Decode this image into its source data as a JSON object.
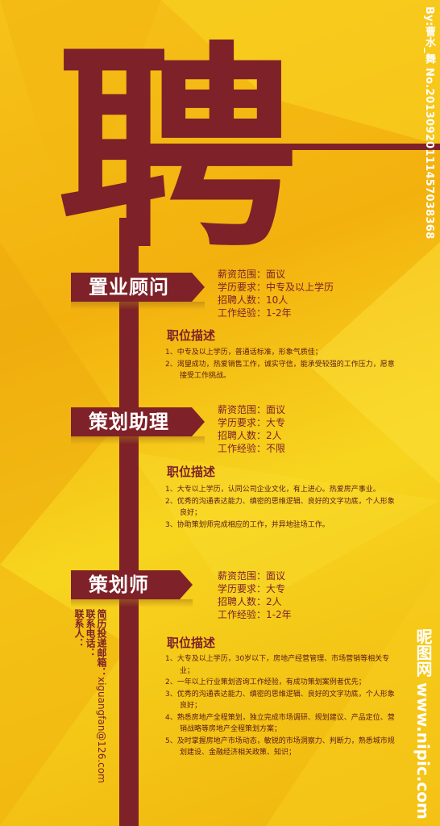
{
  "headline": "聘",
  "jobs": [
    {
      "title": "置业顾问",
      "info": [
        "薪资范围：面议",
        "学历要求：中专及以上学历",
        "招聘人数：10人",
        "工作经验：1-2年"
      ],
      "desc_title": "职位描述",
      "desc": [
        "1、中专及以上学历，普通话标准，形象气质佳；",
        "2、渴望成功，热爱销售工作，诚实守信，能承受较强的工作压力，愿意接受工作挑战。"
      ]
    },
    {
      "title": "策划助理",
      "info": [
        "薪资范围：面议",
        "学历要求：大专",
        "招聘人数：2人",
        "工作经验：不限"
      ],
      "desc_title": "职位描述",
      "desc": [
        "1、大专以上学历，认同公司企业文化，有上进心。热爱房产事业。",
        "2、优秀的沟通表达能力、缜密的思维逻辑、良好的文字功底，个人形象良好；",
        "3、协助策划师完成相应的工作，并异地驻场工作。"
      ]
    },
    {
      "title": "策划师",
      "info": [
        "薪资范围：面议",
        "学历要求：大专",
        "招聘人数：2人",
        "工作经验：1-2年"
      ],
      "desc_title": "职位描述",
      "desc": [
        "1、大专及以上学历，30岁以下，房地产经营管理、市场营销等相关专业；",
        "2、一年以上行业策划咨询工作经验，有成功策划案例者优先；",
        "3、优秀的沟通表达能力、缜密的思维逻辑、良好的文字功底，个人形象良好；",
        "4、熟悉房地产全程策划，独立完成市场调研、规划建议、产品定位、营销战略等房地产全程策划方案；",
        "5、及时掌握房地产市场动态，敏锐的市场洞察力、判断力，熟悉城市规划建设、金融经济相关政策、知识；"
      ]
    }
  ],
  "contact": {
    "email_label": "简历投递邮箱：",
    "email": "xiguangfan@126.com",
    "phone_label": "联系电话：",
    "person_label": "联系人："
  },
  "watermark": "By:曹水_舞  No.20130920111457038368",
  "site_logo": "昵图网 www.nipic.com",
  "colors": {
    "maroon": "#7e2128",
    "yellow": "#f6c21a"
  }
}
